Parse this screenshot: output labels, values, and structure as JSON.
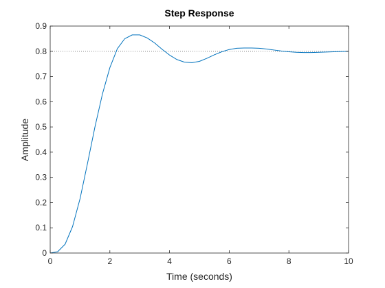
{
  "chart_data": {
    "type": "line",
    "title": "Step Response",
    "xlabel": "Time (seconds)",
    "ylabel": "Amplitude",
    "xlim": [
      0,
      10
    ],
    "ylim": [
      0,
      0.9
    ],
    "xticks": [
      0,
      2,
      4,
      6,
      8,
      10
    ],
    "xtick_labels": [
      "0",
      "2",
      "4",
      "6",
      "8",
      "10"
    ],
    "yticks": [
      0,
      0.1,
      0.2,
      0.3,
      0.4,
      0.5,
      0.6,
      0.7,
      0.8,
      0.9
    ],
    "ytick_labels": [
      "0",
      "0.1",
      "0.2",
      "0.3",
      "0.4",
      "0.5",
      "0.6",
      "0.7",
      "0.8",
      "0.9"
    ],
    "grid": false,
    "reference_line": {
      "y": 0.8,
      "style": "dotted",
      "color": "#7f7f7f"
    },
    "series": [
      {
        "color": "#0072BD",
        "x": [
          0,
          0.25,
          0.5,
          0.75,
          1.0,
          1.25,
          1.5,
          1.75,
          2.0,
          2.25,
          2.5,
          2.75,
          3.0,
          3.25,
          3.5,
          3.75,
          4.0,
          4.25,
          4.5,
          4.75,
          5.0,
          5.25,
          5.5,
          5.75,
          6.0,
          6.25,
          6.5,
          6.75,
          7.0,
          7.25,
          7.5,
          7.75,
          8.0,
          8.25,
          8.5,
          8.75,
          9.0,
          9.25,
          9.5,
          9.75,
          10.0
        ],
        "y": [
          0,
          0.005,
          0.035,
          0.105,
          0.215,
          0.355,
          0.5,
          0.63,
          0.735,
          0.81,
          0.85,
          0.865,
          0.865,
          0.853,
          0.833,
          0.808,
          0.785,
          0.767,
          0.757,
          0.755,
          0.76,
          0.772,
          0.786,
          0.798,
          0.807,
          0.812,
          0.813,
          0.813,
          0.812,
          0.809,
          0.805,
          0.801,
          0.798,
          0.796,
          0.795,
          0.795,
          0.796,
          0.797,
          0.798,
          0.799,
          0.8
        ]
      }
    ]
  }
}
